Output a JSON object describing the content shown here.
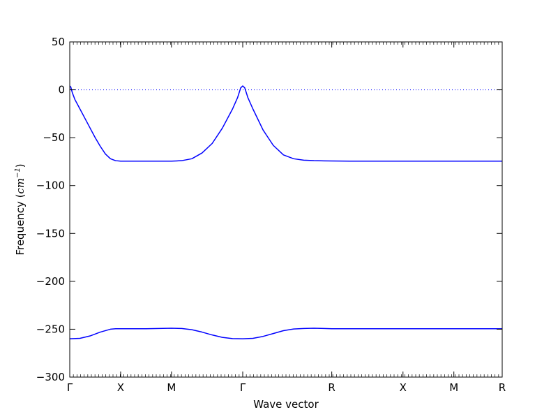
{
  "chart_data": {
    "type": "line",
    "title": "",
    "xlabel": "Wave vector",
    "ylabel": {
      "prefix": "Frequency (",
      "unit": "cm",
      "exponent": "−1",
      "suffix": ")"
    },
    "xlim": [
      0,
      8.5
    ],
    "ylim": [
      -300,
      50
    ],
    "yticks": [
      {
        "value": 50,
        "label": "50"
      },
      {
        "value": 0,
        "label": "0"
      },
      {
        "value": -50,
        "label": "−50"
      },
      {
        "value": -100,
        "label": "−100"
      },
      {
        "value": -150,
        "label": "−150"
      },
      {
        "value": -200,
        "label": "−200"
      },
      {
        "value": -250,
        "label": "−250"
      },
      {
        "value": -300,
        "label": "−300"
      }
    ],
    "xticks": [
      {
        "value": 0,
        "label": "Γ"
      },
      {
        "value": 1.0,
        "label": "X"
      },
      {
        "value": 2.0,
        "label": "M"
      },
      {
        "value": 3.4,
        "label": "Γ"
      },
      {
        "value": 5.15,
        "label": "R"
      },
      {
        "value": 6.55,
        "label": "X"
      },
      {
        "value": 7.55,
        "label": "M"
      },
      {
        "value": 8.5,
        "label": "R"
      }
    ],
    "zero_line": {
      "y": 0,
      "style": "dotted",
      "color": "#0000ff"
    },
    "line_color": "#0000ff",
    "series": [
      {
        "x": [
          0,
          0.02,
          0.05,
          0.1,
          0.2,
          0.3,
          0.4,
          0.5,
          0.6,
          0.7,
          0.8,
          0.9,
          1.0,
          1.2,
          1.5,
          1.8,
          2.0,
          2.2,
          2.4,
          2.6,
          2.8,
          3.0,
          3.2,
          3.3,
          3.36,
          3.4,
          3.44,
          3.5,
          3.6,
          3.8,
          4.0,
          4.2,
          4.4,
          4.6,
          4.8,
          5.0,
          5.15,
          5.5,
          6.0,
          6.55,
          7.0,
          7.55,
          8.0,
          8.5
        ],
        "y": [
          4,
          3,
          -3,
          -10,
          -20,
          -30,
          -40,
          -50,
          -59,
          -67,
          -72,
          -74,
          -74.5,
          -74.5,
          -74.5,
          -74.5,
          -74.5,
          -74,
          -72,
          -66,
          -56,
          -40,
          -20,
          -8,
          2,
          4,
          2,
          -8,
          -20,
          -42,
          -58,
          -68,
          -72,
          -73.5,
          -74,
          -74.2,
          -74.3,
          -74.5,
          -74.5,
          -74.5,
          -74.5,
          -74.5,
          -74.5,
          -74.5
        ]
      },
      {
        "x": [
          0,
          0.2,
          0.4,
          0.6,
          0.8,
          0.9,
          1.0,
          1.5,
          2.0,
          2.2,
          2.4,
          2.6,
          2.8,
          3.0,
          3.2,
          3.4,
          3.6,
          3.8,
          4.0,
          4.2,
          4.4,
          4.6,
          4.8,
          5.0,
          5.15,
          5.5,
          6.0,
          6.55,
          7.0,
          7.55,
          8.0,
          8.5
        ],
        "y": [
          -260,
          -259.5,
          -257,
          -253,
          -250,
          -249.5,
          -249.5,
          -249.5,
          -249,
          -249.2,
          -250.5,
          -253,
          -256,
          -258.5,
          -259.8,
          -260,
          -259.5,
          -257.5,
          -254.5,
          -251.5,
          -249.8,
          -249.2,
          -249,
          -249.2,
          -249.5,
          -249.5,
          -249.5,
          -249.5,
          -249.5,
          -249.5,
          -249.5,
          -249.5
        ]
      }
    ]
  }
}
